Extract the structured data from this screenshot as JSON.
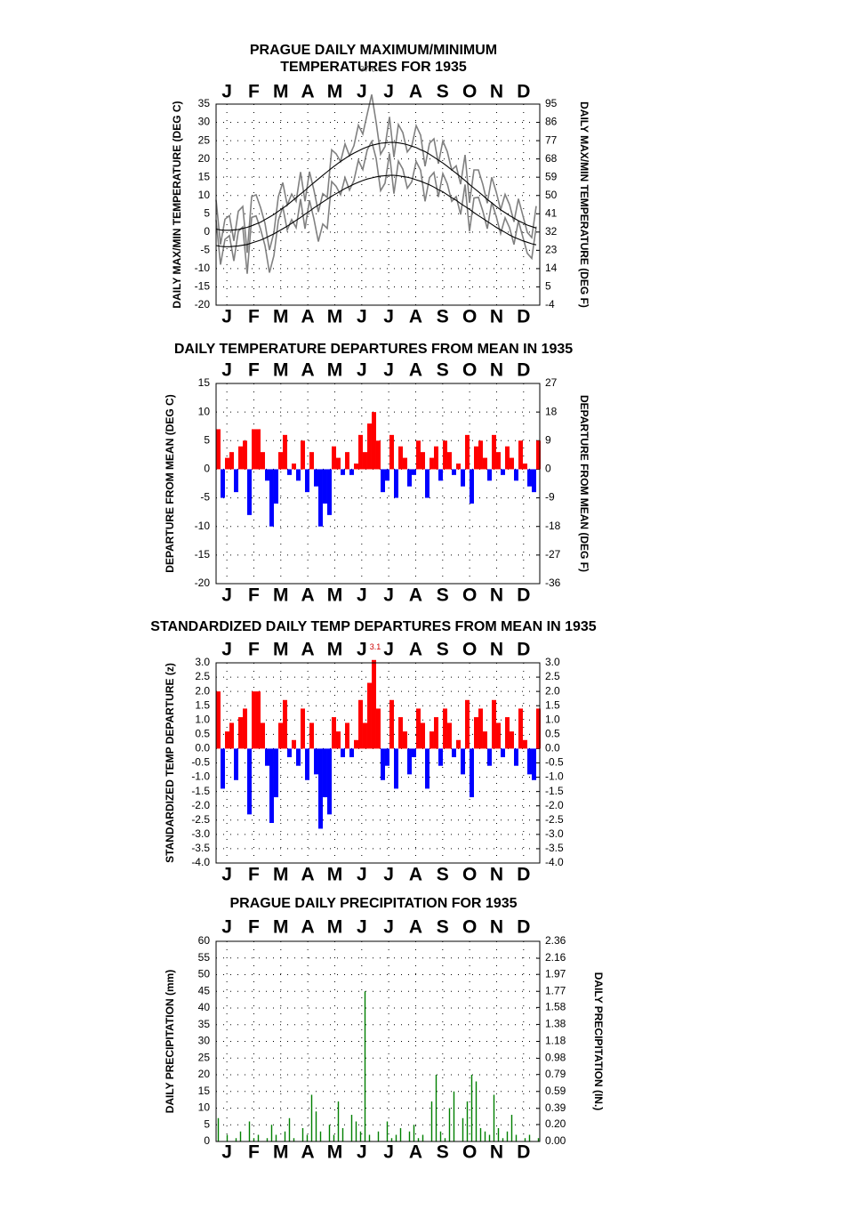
{
  "chart_data": [
    {
      "type": "line",
      "title": [
        "PRAGUE DAILY MAXIMUM/MINIMUM",
        "TEMPERATURES FOR 1935"
      ],
      "ylabel": "DAILY MAX/MIN TEMPERATURE (DEG C)",
      "y2label": "DAILY MAX/MIN TEMPERATURE (DEG F)",
      "months": [
        "J",
        "F",
        "M",
        "A",
        "M",
        "J",
        "J",
        "A",
        "S",
        "O",
        "N",
        "D"
      ],
      "annotation": "37.6 C",
      "xlim": [
        1,
        365
      ],
      "ylim": [
        -20,
        35
      ],
      "yticks": [
        -20,
        -15,
        -10,
        -5,
        0,
        5,
        10,
        15,
        20,
        25,
        30,
        35
      ],
      "y2lim": [
        -4,
        95
      ],
      "y2ticks": [
        -4,
        5,
        14,
        23,
        32,
        41,
        50,
        59,
        68,
        77,
        86,
        95
      ],
      "grid": true,
      "x": [
        1,
        6,
        11,
        16,
        21,
        26,
        31,
        36,
        41,
        46,
        51,
        56,
        61,
        66,
        71,
        76,
        81,
        86,
        91,
        96,
        101,
        106,
        111,
        116,
        121,
        126,
        131,
        136,
        141,
        146,
        151,
        156,
        161,
        166,
        171,
        176,
        181,
        186,
        191,
        196,
        201,
        206,
        211,
        216,
        221,
        226,
        231,
        236,
        241,
        246,
        251,
        256,
        261,
        266,
        271,
        276,
        281,
        286,
        291,
        296,
        301,
        306,
        311,
        316,
        321,
        326,
        331,
        336,
        341,
        346,
        351,
        356,
        361
      ],
      "series": [
        {
          "color": "#808080",
          "values": [
            8.8,
            -3.4,
            3.5,
            4.5,
            -2.4,
            5.7,
            7.0,
            -5.7,
            9.7,
            10.2,
            6.7,
            2.4,
            -4.9,
            -0.2,
            9.7,
            13.5,
            7.4,
            10.4,
            8.4,
            16.4,
            8.4,
            16.5,
            11.5,
            5.5,
            10.5,
            9.5,
            22.5,
            21.4,
            19.3,
            24.1,
            20.9,
            23.6,
            29.2,
            26.8,
            32.3,
            37.6,
            30.0,
            21.3,
            23.4,
            31.5,
            20.5,
            29.4,
            27.2,
            21.9,
            23.5,
            29.1,
            26.5,
            18.0,
            24.3,
            25.5,
            18.7,
            24.9,
            22.0,
            17.0,
            18.1,
            13.1,
            21.1,
            8.0,
            17.0,
            17.0,
            13.0,
            7.9,
            15.0,
            11.0,
            6.1,
            10.3,
            7.5,
            2.8,
            9.1,
            4.5,
            -0.1,
            -1.5,
            7.1
          ]
        },
        {
          "color": "#808080",
          "values": [
            3.3,
            -8.9,
            -2.0,
            -1.0,
            -7.9,
            0.2,
            1.4,
            -11.4,
            4.0,
            4.4,
            0.8,
            -3.7,
            -11.1,
            -6.5,
            3.2,
            6.9,
            0.6,
            3.4,
            1.2,
            9.0,
            0.9,
            8.7,
            3.6,
            -2.6,
            2.2,
            1.0,
            13.8,
            12.5,
            10.2,
            14.9,
            11.5,
            14.1,
            19.6,
            17.1,
            22.5,
            24.8,
            20.1,
            11.3,
            13.4,
            21.5,
            10.5,
            19.4,
            17.2,
            12.0,
            13.7,
            19.3,
            16.9,
            8.4,
            14.9,
            16.3,
            9.6,
            16.0,
            13.2,
            8.4,
            9.7,
            4.8,
            13.0,
            0.2,
            9.3,
            9.5,
            5.7,
            0.9,
            8.1,
            4.3,
            -0.4,
            3.9,
            1.2,
            -3.4,
            3.1,
            -1.4,
            -5.8,
            -7.2,
            1.5
          ]
        },
        {
          "color": "#000000",
          "values": [
            0.8,
            0.6,
            0.5,
            0.5,
            0.6,
            0.7,
            1.0,
            1.3,
            1.7,
            2.2,
            2.7,
            3.4,
            4.1,
            4.8,
            5.7,
            6.5,
            7.4,
            8.4,
            9.4,
            10.4,
            11.4,
            12.5,
            13.5,
            14.5,
            15.5,
            16.5,
            17.5,
            18.4,
            19.3,
            20.1,
            20.9,
            21.6,
            22.2,
            22.8,
            23.3,
            23.7,
            24.0,
            24.3,
            24.4,
            24.5,
            24.5,
            24.4,
            24.2,
            23.9,
            23.5,
            23.1,
            22.5,
            22.0,
            21.3,
            20.5,
            19.7,
            18.9,
            18.0,
            17.0,
            16.1,
            15.1,
            14.1,
            13.0,
            12.0,
            11.0,
            10.0,
            8.9,
            8.0,
            7.0,
            6.1,
            5.3,
            4.5,
            3.8,
            3.1,
            2.5,
            1.9,
            1.5,
            1.1
          ]
        },
        {
          "color": "#000000",
          "values": [
            -3.7,
            -3.9,
            -4.0,
            -4.0,
            -3.9,
            -3.8,
            -3.6,
            -3.4,
            -3.0,
            -2.6,
            -2.2,
            -1.7,
            -1.1,
            -0.5,
            0.2,
            0.9,
            1.6,
            2.4,
            3.2,
            4.0,
            4.9,
            5.7,
            6.6,
            7.4,
            8.2,
            9.0,
            9.8,
            10.5,
            11.2,
            11.9,
            12.5,
            13.1,
            13.6,
            14.1,
            14.5,
            14.8,
            15.1,
            15.3,
            15.4,
            15.5,
            15.5,
            15.4,
            15.2,
            15.0,
            14.7,
            14.3,
            13.9,
            13.4,
            12.9,
            12.3,
            11.6,
            11.0,
            10.2,
            9.4,
            8.7,
            7.8,
            7.0,
            6.2,
            5.3,
            4.5,
            3.7,
            2.9,
            2.1,
            1.3,
            0.6,
            -0.1,
            -0.8,
            -1.4,
            -1.9,
            -2.4,
            -2.8,
            -3.2,
            -3.5
          ]
        }
      ]
    },
    {
      "type": "bar",
      "title": "DAILY TEMPERATURE DEPARTURES FROM MEAN IN 1935",
      "ylabel": "DEPARTURE FROM MEAN (DEG C)",
      "y2label": "DEPARTURE FROM MEAN (DEG F)",
      "months": [
        "J",
        "F",
        "M",
        "A",
        "M",
        "J",
        "J",
        "A",
        "S",
        "O",
        "N",
        "D"
      ],
      "xlim": [
        1,
        365
      ],
      "ylim": [
        -20,
        15
      ],
      "yticks": [
        -20,
        -15,
        -10,
        -5,
        0,
        5,
        10,
        15
      ],
      "y2lim": [
        -36,
        27
      ],
      "y2ticks": [
        -36,
        -27,
        -18,
        -9,
        0,
        9,
        18,
        27
      ],
      "grid": true,
      "color": "#ff0000",
      "negative_color": "#0000ff",
      "x": [
        1,
        6,
        11,
        16,
        21,
        26,
        31,
        36,
        41,
        46,
        51,
        56,
        61,
        66,
        71,
        76,
        81,
        86,
        91,
        96,
        101,
        106,
        111,
        116,
        121,
        126,
        131,
        136,
        141,
        146,
        151,
        156,
        161,
        166,
        171,
        176,
        181,
        186,
        191,
        196,
        201,
        206,
        211,
        216,
        221,
        226,
        231,
        236,
        241,
        246,
        251,
        256,
        261,
        266,
        271,
        276,
        281,
        286,
        291,
        296,
        301,
        306,
        311,
        316,
        321,
        326,
        331,
        336,
        341,
        346,
        351,
        356,
        361
      ],
      "values": [
        7,
        -5,
        2,
        3,
        -4,
        4,
        5,
        -8,
        7,
        7,
        3,
        -2,
        -10,
        -6,
        3,
        6,
        -1,
        1,
        -2,
        5,
        -4,
        3,
        -3,
        -10,
        -6,
        -8,
        4,
        2,
        -1,
        3,
        -1,
        1,
        6,
        3,
        8,
        10,
        5,
        -4,
        -2,
        6,
        -5,
        4,
        2,
        -3,
        -1,
        5,
        3,
        -5,
        2,
        4,
        -2,
        5,
        3,
        -1,
        1,
        -3,
        6,
        -6,
        4,
        5,
        2,
        -2,
        6,
        3,
        -1,
        4,
        2,
        -2,
        5,
        1,
        -3,
        -4,
        5
      ]
    },
    {
      "type": "bar",
      "title": "STANDARDIZED DAILY TEMP DEPARTURES FROM MEAN IN 1935",
      "ylabel": "STANDARDIZED TEMP DEPARTURE (z)",
      "months": [
        "J",
        "F",
        "M",
        "A",
        "M",
        "J",
        "J",
        "A",
        "S",
        "O",
        "N",
        "D"
      ],
      "annotation": "3.1",
      "xlim": [
        1,
        365
      ],
      "ylim": [
        -4,
        3
      ],
      "yticks": [
        {
          "value": -4,
          "label": "-4.0"
        },
        {
          "value": -3.5,
          "label": "-3.5"
        },
        {
          "value": -3,
          "label": "-3.0"
        },
        {
          "value": -2.5,
          "label": "-2.5"
        },
        {
          "value": -2,
          "label": "-2.0"
        },
        {
          "value": -1.5,
          "label": "-1.5"
        },
        {
          "value": -1,
          "label": "-1.0"
        },
        {
          "value": -0.5,
          "label": "-0.5"
        },
        {
          "value": 0,
          "label": "0.0"
        },
        {
          "value": 0.5,
          "label": "0.5"
        },
        {
          "value": 1,
          "label": "1.0"
        },
        {
          "value": 1.5,
          "label": "1.5"
        },
        {
          "value": 2,
          "label": "2.0"
        },
        {
          "value": 2.5,
          "label": "2.5"
        },
        {
          "value": 3,
          "label": "3.0"
        }
      ],
      "y2lim": [
        -4,
        3
      ],
      "y2ticks": [
        {
          "value": -4,
          "label": "-4.0"
        },
        {
          "value": -3.5,
          "label": "-3.5"
        },
        {
          "value": -3,
          "label": "-3.0"
        },
        {
          "value": -2.5,
          "label": "-2.5"
        },
        {
          "value": -2,
          "label": "-2.0"
        },
        {
          "value": -1.5,
          "label": "-1.5"
        },
        {
          "value": -1,
          "label": "-1.0"
        },
        {
          "value": -0.5,
          "label": "-0.5"
        },
        {
          "value": 0,
          "label": "0.0"
        },
        {
          "value": 0.5,
          "label": "0.5"
        },
        {
          "value": 1,
          "label": "1.0"
        },
        {
          "value": 1.5,
          "label": "1.5"
        },
        {
          "value": 2,
          "label": "2.0"
        },
        {
          "value": 2.5,
          "label": "2.5"
        },
        {
          "value": 3,
          "label": "3.0"
        }
      ],
      "grid": true,
      "color": "#ff0000",
      "negative_color": "#0000ff",
      "x": [
        1,
        6,
        11,
        16,
        21,
        26,
        31,
        36,
        41,
        46,
        51,
        56,
        61,
        66,
        71,
        76,
        81,
        86,
        91,
        96,
        101,
        106,
        111,
        116,
        121,
        126,
        131,
        136,
        141,
        146,
        151,
        156,
        161,
        166,
        171,
        176,
        181,
        186,
        191,
        196,
        201,
        206,
        211,
        216,
        221,
        226,
        231,
        236,
        241,
        246,
        251,
        256,
        261,
        266,
        271,
        276,
        281,
        286,
        291,
        296,
        301,
        306,
        311,
        316,
        321,
        326,
        331,
        336,
        341,
        346,
        351,
        356,
        361
      ],
      "values": [
        2.0,
        -1.4,
        0.6,
        0.9,
        -1.1,
        1.1,
        1.4,
        -2.3,
        2.0,
        2.0,
        0.9,
        -0.6,
        -2.6,
        -1.7,
        0.9,
        1.7,
        -0.3,
        0.3,
        -0.6,
        1.4,
        -1.1,
        0.9,
        -0.9,
        -2.8,
        -1.7,
        -2.3,
        1.1,
        0.6,
        -0.3,
        0.9,
        -0.3,
        0.3,
        1.7,
        0.9,
        2.3,
        3.1,
        1.4,
        -1.1,
        -0.6,
        1.7,
        -1.4,
        1.1,
        0.6,
        -0.9,
        -0.3,
        1.4,
        0.9,
        -1.4,
        0.6,
        1.1,
        -0.6,
        1.4,
        0.9,
        -0.3,
        0.3,
        -0.9,
        1.7,
        -1.7,
        1.1,
        1.4,
        0.6,
        -0.6,
        1.7,
        0.9,
        -0.3,
        1.1,
        0.6,
        -0.6,
        1.4,
        0.3,
        -0.9,
        -1.1,
        1.4
      ]
    },
    {
      "type": "bar",
      "title": "PRAGUE DAILY PRECIPITATION FOR 1935",
      "ylabel": "DAILY PRECIPITATION (mm)",
      "y2label": "DAILY PRECIPITATION (IN.)",
      "months": [
        "J",
        "F",
        "M",
        "A",
        "M",
        "J",
        "J",
        "A",
        "S",
        "O",
        "N",
        "D"
      ],
      "xlim": [
        1,
        365
      ],
      "ylim": [
        0,
        60
      ],
      "yticks": [
        0,
        5,
        10,
        15,
        20,
        25,
        30,
        35,
        40,
        45,
        50,
        55,
        60
      ],
      "y2lim": [
        0,
        2.36
      ],
      "y2ticks": [
        {
          "value": 0,
          "label": "0.00"
        },
        {
          "value": 0.2,
          "label": "0.20"
        },
        0.39,
        0.59,
        0.79,
        0.98,
        1.18,
        1.38,
        1.58,
        1.77,
        1.97,
        2.16,
        2.36
      ],
      "grid": true,
      "color": "#008000",
      "thin": true,
      "x": [
        1,
        6,
        11,
        16,
        21,
        26,
        31,
        36,
        41,
        46,
        51,
        56,
        61,
        66,
        71,
        76,
        81,
        86,
        91,
        96,
        101,
        106,
        111,
        116,
        121,
        126,
        131,
        136,
        141,
        146,
        151,
        156,
        161,
        166,
        171,
        176,
        181,
        186,
        191,
        196,
        201,
        206,
        211,
        216,
        221,
        226,
        231,
        236,
        241,
        246,
        251,
        256,
        261,
        266,
        271,
        276,
        281,
        286,
        291,
        296,
        301,
        306,
        311,
        316,
        321,
        326,
        331,
        336,
        341,
        346,
        351,
        356,
        361
      ],
      "values": [
        7,
        0,
        2,
        0,
        1,
        3,
        0,
        6,
        1,
        2,
        0,
        1,
        5,
        2,
        0,
        3,
        7,
        1,
        0,
        4,
        2,
        14,
        9,
        3,
        0,
        5,
        2,
        12,
        4,
        0,
        8,
        6,
        3,
        45,
        2,
        0,
        3,
        0,
        6,
        1,
        2,
        4,
        0,
        3,
        5,
        1,
        2,
        0,
        12,
        20,
        3,
        1,
        10,
        15,
        0,
        7,
        12,
        20,
        18,
        4,
        3,
        2,
        14,
        4,
        1,
        3,
        8,
        2,
        0,
        1,
        2,
        0,
        1
      ]
    }
  ]
}
